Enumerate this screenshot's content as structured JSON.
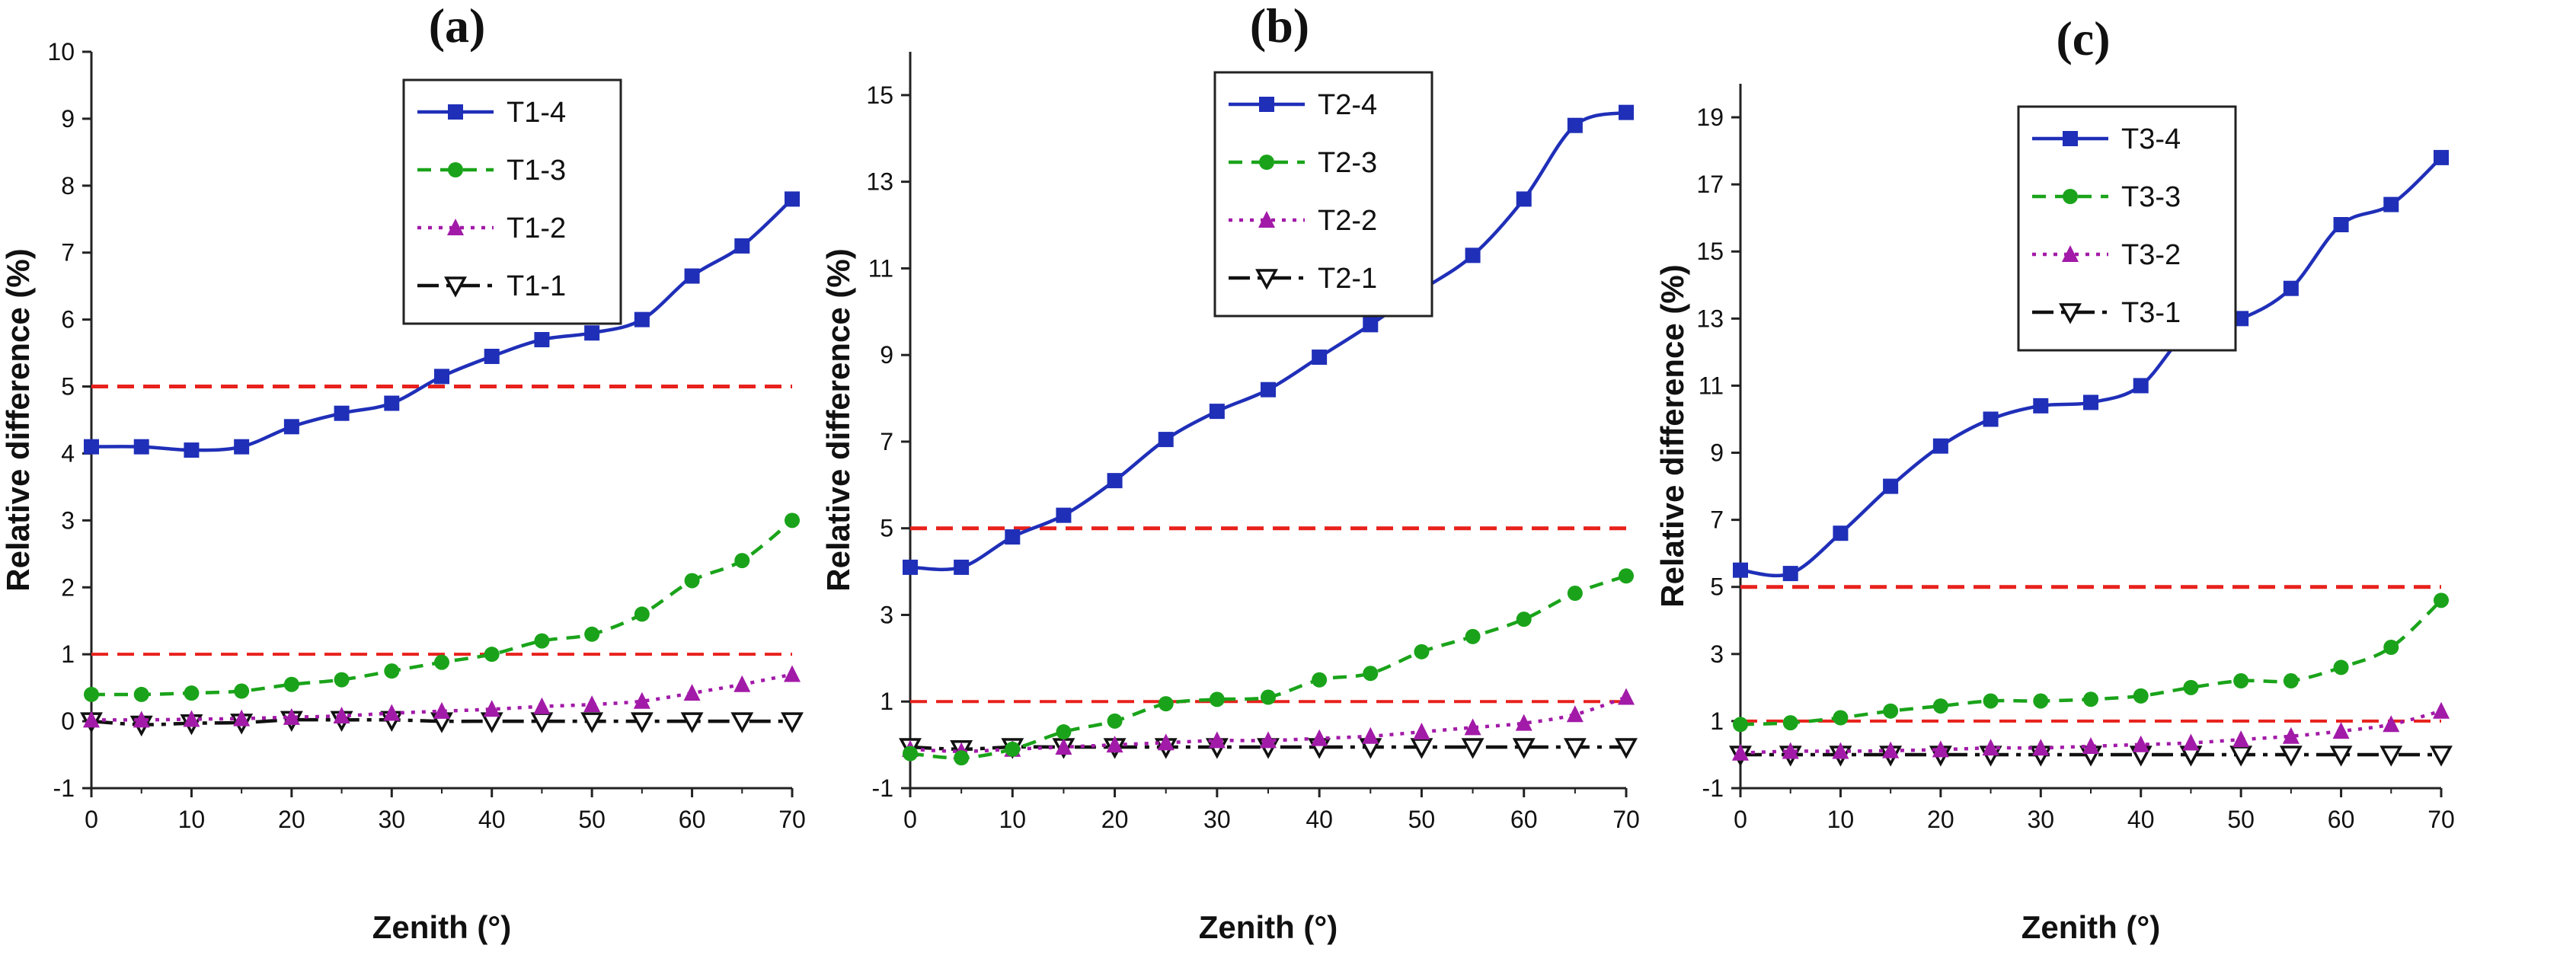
{
  "colors": {
    "series1": "#1f2fb8",
    "series2": "#1aa31a",
    "series3": "#a21aa8",
    "series4": "#111111",
    "reference": "#e8211c",
    "axis": "#222222"
  },
  "chart_data": [
    {
      "type": "line",
      "panel_label": "(a)",
      "xlabel": "Zenith (°)",
      "ylabel": "Relative difference (%)",
      "xlim": [
        0,
        70
      ],
      "ylim": [
        -1,
        10
      ],
      "xticks": [
        "0",
        "10",
        "20",
        "30",
        "40",
        "50",
        "60",
        "70"
      ],
      "yticks": [
        "-1",
        "0",
        "1",
        "2",
        "3",
        "4",
        "5",
        "6",
        "7",
        "8",
        "9",
        "10"
      ],
      "x": [
        0,
        5,
        10,
        15,
        20,
        25,
        30,
        35,
        40,
        45,
        50,
        55,
        60,
        65,
        70
      ],
      "reference_lines": [
        5,
        1
      ],
      "legend_position": "top-center",
      "series": [
        {
          "name": "T1-4",
          "values": [
            4.1,
            4.1,
            4.05,
            4.1,
            4.4,
            4.6,
            4.75,
            5.15,
            5.45,
            5.7,
            5.8,
            6.0,
            6.65,
            7.1,
            7.8
          ]
        },
        {
          "name": "T1-3",
          "values": [
            0.4,
            0.4,
            0.42,
            0.45,
            0.55,
            0.62,
            0.75,
            0.88,
            1.0,
            1.2,
            1.3,
            1.6,
            2.1,
            2.4,
            3.0
          ]
        },
        {
          "name": "T1-2",
          "values": [
            0.02,
            0.02,
            0.03,
            0.04,
            0.06,
            0.08,
            0.12,
            0.15,
            0.18,
            0.22,
            0.25,
            0.3,
            0.42,
            0.55,
            0.7
          ]
        },
        {
          "name": "T1-1",
          "values": [
            0.0,
            -0.05,
            -0.03,
            -0.02,
            0.02,
            0.02,
            0.02,
            0.0,
            0.0,
            0.0,
            0.0,
            0.0,
            0.0,
            0.0,
            0.0
          ]
        }
      ]
    },
    {
      "type": "line",
      "panel_label": "(b)",
      "xlabel": "Zenith (°)",
      "ylabel": "Relative difference (%)",
      "xlim": [
        0,
        70
      ],
      "ylim": [
        -1,
        16
      ],
      "xticks": [
        "0",
        "10",
        "20",
        "30",
        "40",
        "50",
        "60",
        "70"
      ],
      "yticks": [
        "-1",
        "1",
        "3",
        "5",
        "7",
        "9",
        "11",
        "13",
        "15"
      ],
      "x": [
        0,
        5,
        10,
        15,
        20,
        25,
        30,
        35,
        40,
        45,
        50,
        55,
        60,
        65,
        70
      ],
      "reference_lines": [
        5,
        1
      ],
      "legend_position": "top-center",
      "series": [
        {
          "name": "T2-4",
          "values": [
            4.1,
            4.1,
            4.8,
            5.3,
            6.1,
            7.05,
            7.7,
            8.2,
            8.95,
            9.7,
            10.5,
            11.3,
            12.6,
            14.3,
            14.6
          ]
        },
        {
          "name": "T2-3",
          "values": [
            -0.2,
            -0.3,
            -0.1,
            0.3,
            0.55,
            0.95,
            1.05,
            1.1,
            1.5,
            1.65,
            2.15,
            2.5,
            2.9,
            3.5,
            3.9
          ]
        },
        {
          "name": "T2-2",
          "values": [
            -0.1,
            -0.15,
            -0.1,
            -0.05,
            0.0,
            0.05,
            0.1,
            0.1,
            0.15,
            0.2,
            0.3,
            0.4,
            0.5,
            0.7,
            1.1
          ]
        },
        {
          "name": "T2-1",
          "values": [
            -0.05,
            -0.1,
            -0.05,
            -0.05,
            -0.05,
            -0.05,
            -0.05,
            -0.05,
            -0.05,
            -0.05,
            -0.05,
            -0.05,
            -0.05,
            -0.05,
            -0.05
          ]
        }
      ]
    },
    {
      "type": "line",
      "panel_label": "(c)",
      "xlabel": "Zenith (°)",
      "ylabel": "Relative difference (%)",
      "xlim": [
        0,
        70
      ],
      "ylim": [
        -1,
        20
      ],
      "xticks": [
        "0",
        "10",
        "20",
        "30",
        "40",
        "50",
        "60",
        "70"
      ],
      "yticks": [
        "-1",
        "1",
        "3",
        "5",
        "7",
        "9",
        "11",
        "13",
        "15",
        "17",
        "19"
      ],
      "x": [
        0,
        5,
        10,
        15,
        20,
        25,
        30,
        35,
        40,
        45,
        50,
        55,
        60,
        65,
        70
      ],
      "reference_lines": [
        5,
        1
      ],
      "legend_position": "top-center",
      "series": [
        {
          "name": "T3-4",
          "values": [
            5.5,
            5.4,
            6.6,
            8.0,
            9.2,
            10.0,
            10.4,
            10.5,
            11.0,
            12.7,
            13.0,
            13.9,
            15.8,
            16.4,
            17.8
          ]
        },
        {
          "name": "T3-3",
          "values": [
            0.9,
            0.95,
            1.1,
            1.3,
            1.45,
            1.6,
            1.6,
            1.65,
            1.75,
            2.0,
            2.2,
            2.2,
            2.6,
            3.2,
            4.6
          ]
        },
        {
          "name": "T3-2",
          "values": [
            0.05,
            0.1,
            0.1,
            0.12,
            0.15,
            0.2,
            0.2,
            0.25,
            0.3,
            0.35,
            0.45,
            0.55,
            0.7,
            0.9,
            1.3
          ]
        },
        {
          "name": "T3-1",
          "values": [
            0.0,
            0.0,
            0.0,
            0.0,
            0.0,
            0.0,
            0.0,
            0.0,
            0.0,
            0.0,
            0.0,
            0.0,
            0.0,
            0.0,
            0.0
          ]
        }
      ]
    }
  ]
}
